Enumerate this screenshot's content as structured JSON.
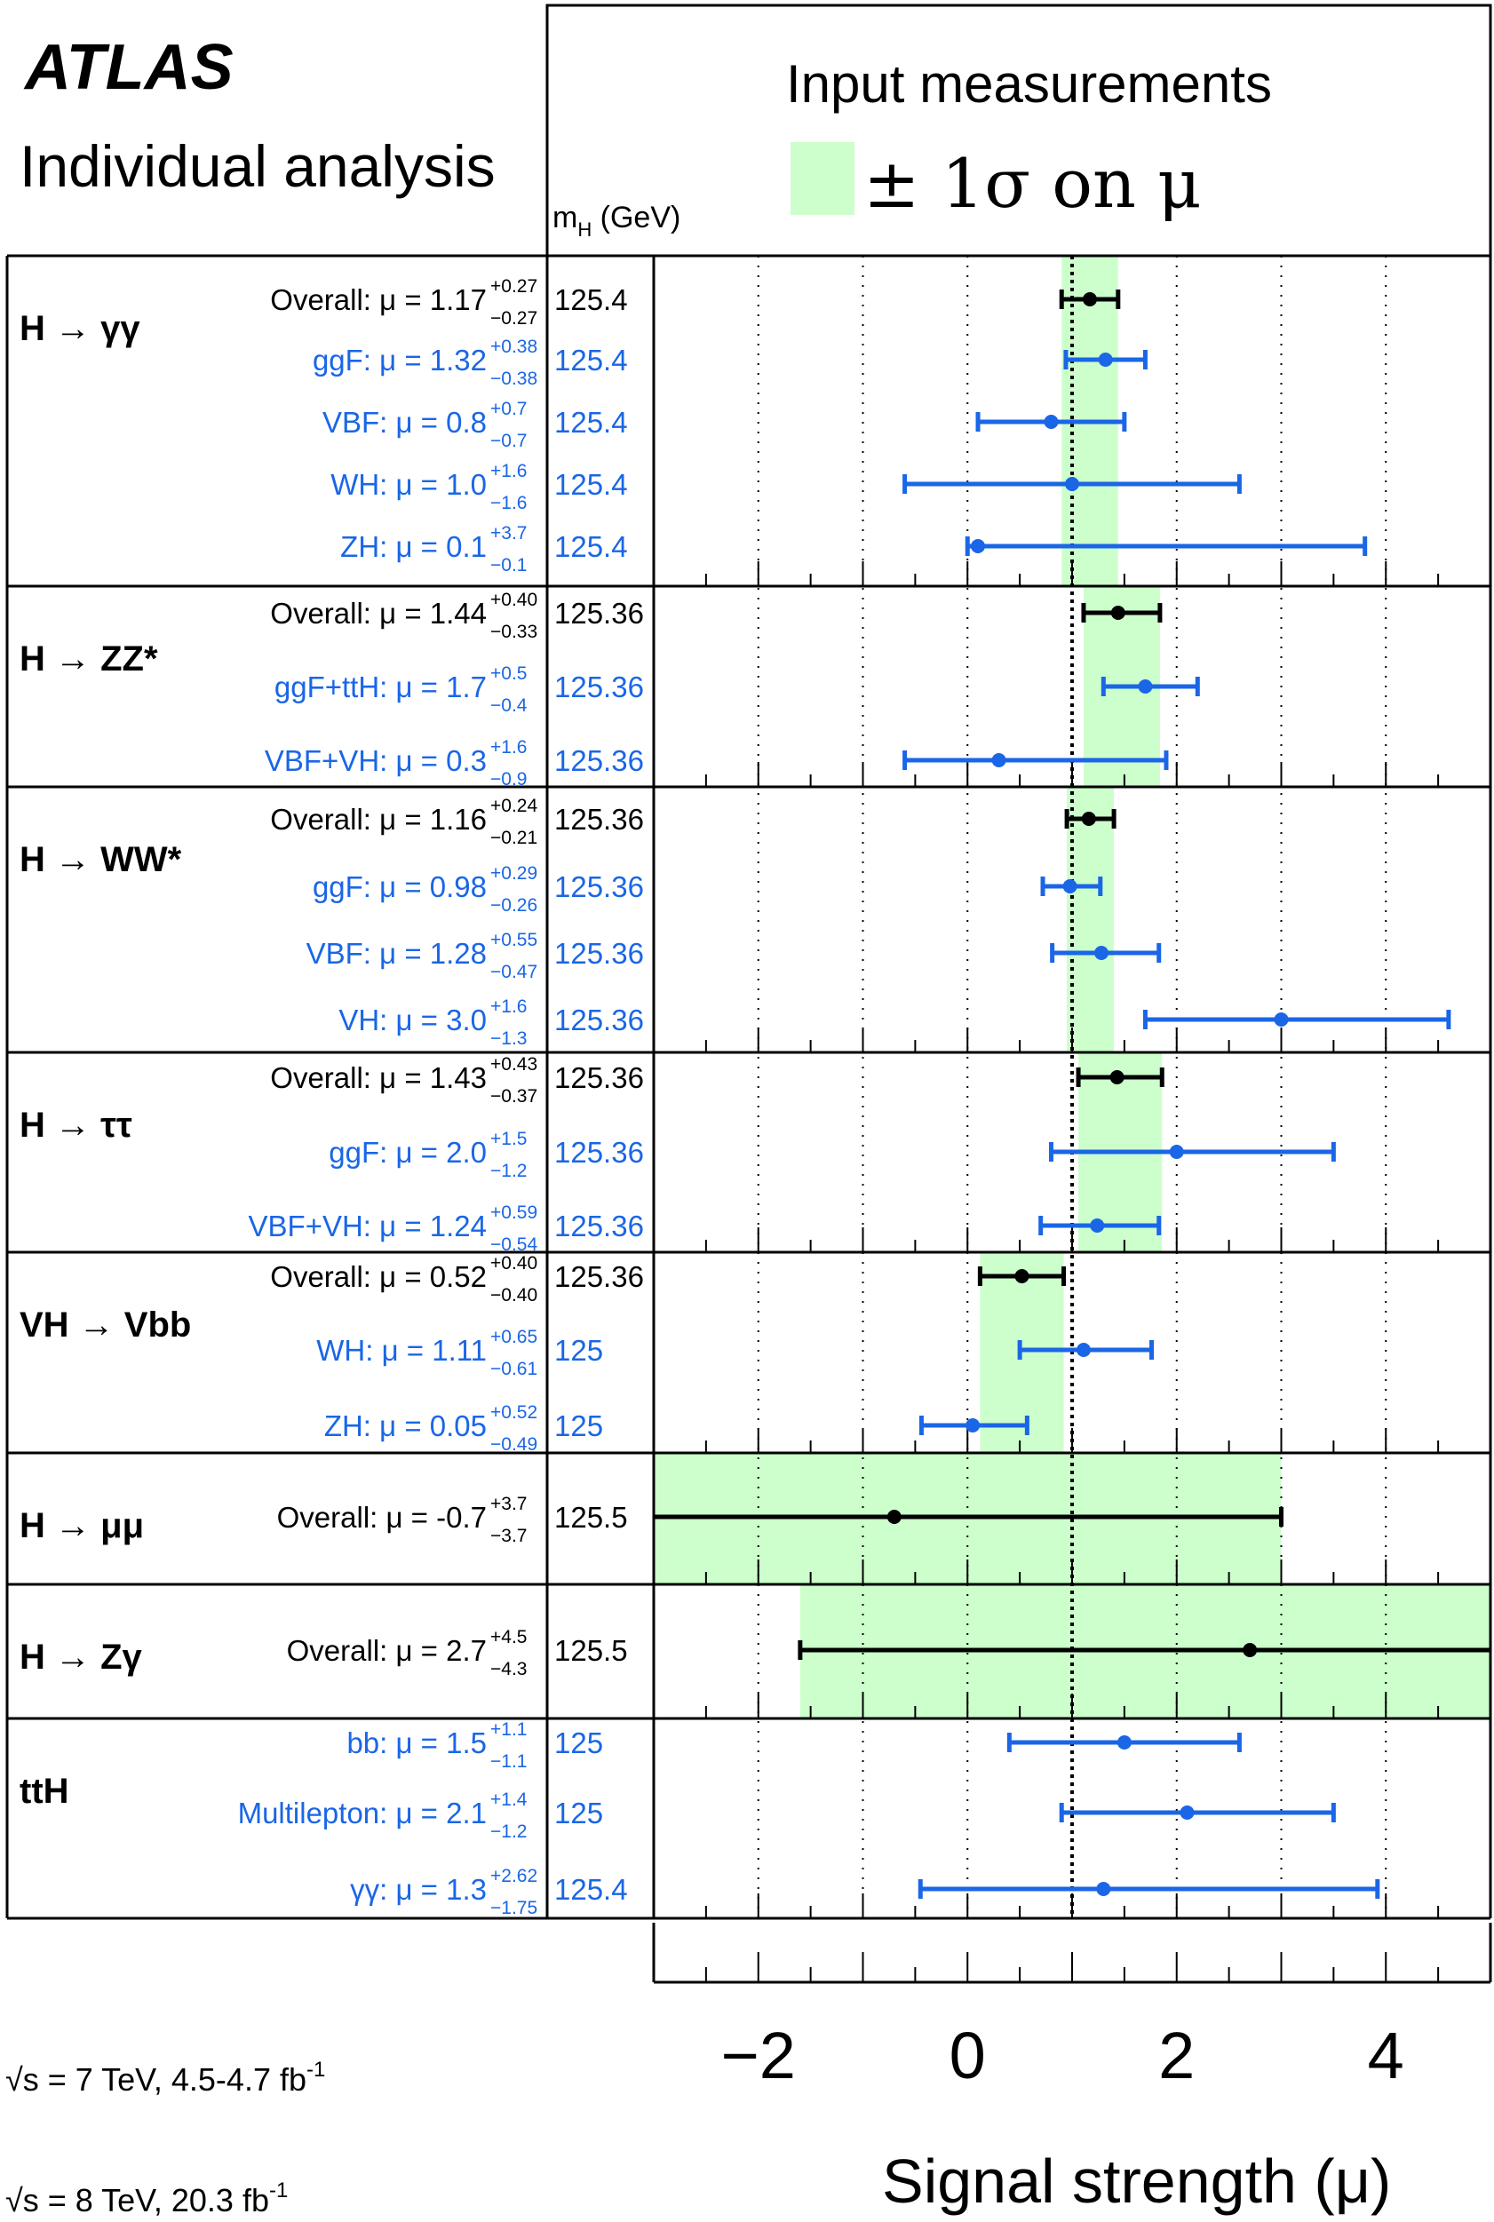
{
  "header": {
    "experiment": "ATLAS",
    "subtitle": "Individual analysis",
    "legend_title": "Input measurements",
    "legend_entry": "± 1σ on μ",
    "mass_col_label": "m",
    "mass_col_sub": "H",
    "mass_col_unit": " (GeV)"
  },
  "footer": {
    "energy_7_label": "√s = 7 TeV, 4.5-4.7 fb",
    "energy_8_label": "√s = 8 TeV, 20.3 fb",
    "lumi_exp": "-1"
  },
  "colors": {
    "band": "#ccffcc",
    "overall": "#000000",
    "production": "#1a66e6"
  },
  "chart_data": {
    "type": "forest",
    "xlabel": "Signal strength (μ)",
    "xlim": [
      -3,
      5
    ],
    "x_ticks": [
      -2,
      0,
      2,
      4
    ],
    "reference_line": 1,
    "groups": [
      {
        "name": "H → γγ",
        "band": [
          0.9,
          1.44
        ],
        "entries": [
          {
            "label": "Overall",
            "value": "1.17",
            "up": "+0.27",
            "down": "−0.27",
            "mass": "125.4",
            "kind": "overall",
            "mu": 1.17,
            "err_up": 0.27,
            "err_down": 0.27
          },
          {
            "label": "ggF",
            "value": "1.32",
            "up": "+0.38",
            "down": "−0.38",
            "mass": "125.4",
            "kind": "production",
            "mu": 1.32,
            "err_up": 0.38,
            "err_down": 0.38
          },
          {
            "label": "VBF",
            "value": "0.8",
            "up": "+0.7",
            "down": "−0.7",
            "mass": "125.4",
            "kind": "production",
            "mu": 0.8,
            "err_up": 0.7,
            "err_down": 0.7
          },
          {
            "label": "WH",
            "value": "1.0",
            "up": "+1.6",
            "down": "−1.6",
            "mass": "125.4",
            "kind": "production",
            "mu": 1.0,
            "err_up": 1.6,
            "err_down": 1.6
          },
          {
            "label": "ZH",
            "value": "0.1",
            "up": "+3.7",
            "down": "−0.1",
            "mass": "125.4",
            "kind": "production",
            "mu": 0.1,
            "err_up": 3.7,
            "err_down": 0.1
          }
        ]
      },
      {
        "name": "H → ZZ*",
        "band": [
          1.11,
          1.84
        ],
        "entries": [
          {
            "label": "Overall",
            "value": "1.44",
            "up": "+0.40",
            "down": "−0.33",
            "mass": "125.36",
            "kind": "overall",
            "mu": 1.44,
            "err_up": 0.4,
            "err_down": 0.33
          },
          {
            "label": "ggF+ttH",
            "value": "1.7",
            "up": "+0.5",
            "down": "−0.4",
            "mass": "125.36",
            "kind": "production",
            "mu": 1.7,
            "err_up": 0.5,
            "err_down": 0.4
          },
          {
            "label": "VBF+VH",
            "value": "0.3",
            "up": "+1.6",
            "down": "−0.9",
            "mass": "125.36",
            "kind": "production",
            "mu": 0.3,
            "err_up": 1.6,
            "err_down": 0.9
          }
        ]
      },
      {
        "name": "H → WW*",
        "band": [
          0.95,
          1.4
        ],
        "entries": [
          {
            "label": "Overall",
            "value": "1.16",
            "up": "+0.24",
            "down": "−0.21",
            "mass": "125.36",
            "kind": "overall",
            "mu": 1.16,
            "err_up": 0.24,
            "err_down": 0.21
          },
          {
            "label": "ggF",
            "value": "0.98",
            "up": "+0.29",
            "down": "−0.26",
            "mass": "125.36",
            "kind": "production",
            "mu": 0.98,
            "err_up": 0.29,
            "err_down": 0.26
          },
          {
            "label": "VBF",
            "value": "1.28",
            "up": "+0.55",
            "down": "−0.47",
            "mass": "125.36",
            "kind": "production",
            "mu": 1.28,
            "err_up": 0.55,
            "err_down": 0.47
          },
          {
            "label": "VH",
            "value": "3.0",
            "up": "+1.6",
            "down": "−1.3",
            "mass": "125.36",
            "kind": "production",
            "mu": 3.0,
            "err_up": 1.6,
            "err_down": 1.3
          }
        ]
      },
      {
        "name": "H → ττ",
        "band": [
          1.06,
          1.86
        ],
        "entries": [
          {
            "label": "Overall",
            "value": "1.43",
            "up": "+0.43",
            "down": "−0.37",
            "mass": "125.36",
            "kind": "overall",
            "mu": 1.43,
            "err_up": 0.43,
            "err_down": 0.37
          },
          {
            "label": "ggF",
            "value": "2.0",
            "up": "+1.5",
            "down": "−1.2",
            "mass": "125.36",
            "kind": "production",
            "mu": 2.0,
            "err_up": 1.5,
            "err_down": 1.2
          },
          {
            "label": "VBF+VH",
            "value": "1.24",
            "up": "+0.59",
            "down": "−0.54",
            "mass": "125.36",
            "kind": "production",
            "mu": 1.24,
            "err_up": 0.59,
            "err_down": 0.54
          }
        ]
      },
      {
        "name": "VH → Vbb",
        "band": [
          0.12,
          0.92
        ],
        "entries": [
          {
            "label": "Overall",
            "value": "0.52",
            "up": "+0.40",
            "down": "−0.40",
            "mass": "125.36",
            "kind": "overall",
            "mu": 0.52,
            "err_up": 0.4,
            "err_down": 0.4
          },
          {
            "label": "WH",
            "value": "1.11",
            "up": "+0.65",
            "down": "−0.61",
            "mass": "125",
            "kind": "production",
            "mu": 1.11,
            "err_up": 0.65,
            "err_down": 0.61
          },
          {
            "label": "ZH",
            "value": "0.05",
            "up": "+0.52",
            "down": "−0.49",
            "mass": "125",
            "kind": "production",
            "mu": 0.05,
            "err_up": 0.52,
            "err_down": 0.49
          }
        ]
      },
      {
        "name": "H → μμ",
        "band": [
          -4.4,
          3.0
        ],
        "entries": [
          {
            "label": "Overall",
            "value": "-0.7",
            "up": "+3.7",
            "down": "−3.7",
            "mass": "125.5",
            "kind": "overall",
            "mu": -0.7,
            "err_up": 3.7,
            "err_down": 3.7
          }
        ]
      },
      {
        "name": "H → Zγ",
        "band": [
          -1.6,
          7.2
        ],
        "entries": [
          {
            "label": "Overall",
            "value": "2.7",
            "up": "+4.5",
            "down": "−4.3",
            "mass": "125.5",
            "kind": "overall",
            "mu": 2.7,
            "err_up": 4.5,
            "err_down": 4.3
          }
        ]
      },
      {
        "name": "ttH",
        "band": null,
        "entries": [
          {
            "label": "bb",
            "value": "1.5",
            "up": "+1.1",
            "down": "−1.1",
            "mass": "125",
            "kind": "production",
            "mu": 1.5,
            "err_up": 1.1,
            "err_down": 1.1
          },
          {
            "label": "Multilepton",
            "value": "2.1",
            "up": "+1.4",
            "down": "−1.2",
            "mass": "125",
            "kind": "production",
            "mu": 2.1,
            "err_up": 1.4,
            "err_down": 1.2
          },
          {
            "label": "γγ",
            "value": "1.3",
            "up": "+2.62",
            "down": "−1.75",
            "mass": "125.4",
            "kind": "production",
            "mu": 1.3,
            "err_up": 2.62,
            "err_down": 1.75
          }
        ]
      }
    ]
  }
}
